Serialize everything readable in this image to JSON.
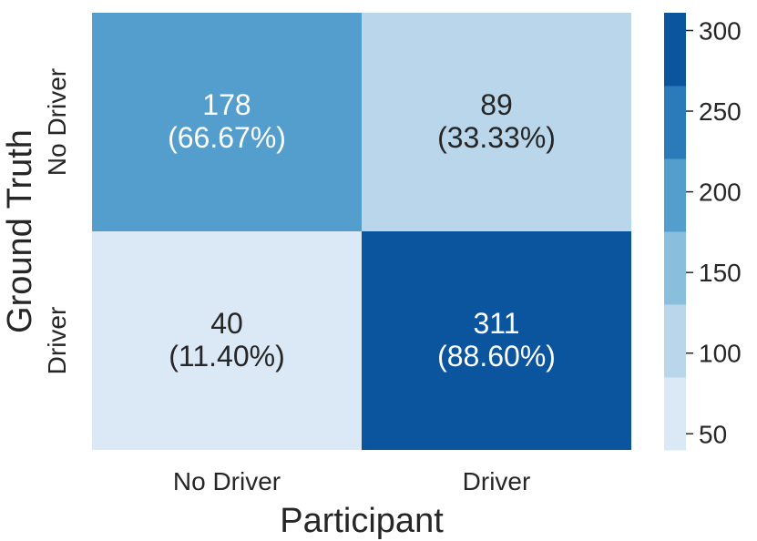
{
  "chart_data": {
    "type": "heatmap",
    "xlabel": "Participant",
    "ylabel": "Ground Truth",
    "x_categories": [
      "No Driver",
      "Driver"
    ],
    "y_categories": [
      "No Driver",
      "Driver"
    ],
    "values": [
      [
        178,
        89
      ],
      [
        40,
        311
      ]
    ],
    "percent_labels": [
      [
        "(66.67%)",
        "(33.33%)"
      ],
      [
        "(11.40%)",
        "(88.60%)"
      ]
    ],
    "colorbar": {
      "range": [
        40,
        311
      ],
      "ticks": [
        50,
        100,
        150,
        200,
        250,
        300
      ],
      "bins": 6,
      "palette": [
        "#dbe9f6",
        "#bad6eb",
        "#89bedc",
        "#539ecd",
        "#2b7bba",
        "#0b559f"
      ]
    }
  }
}
